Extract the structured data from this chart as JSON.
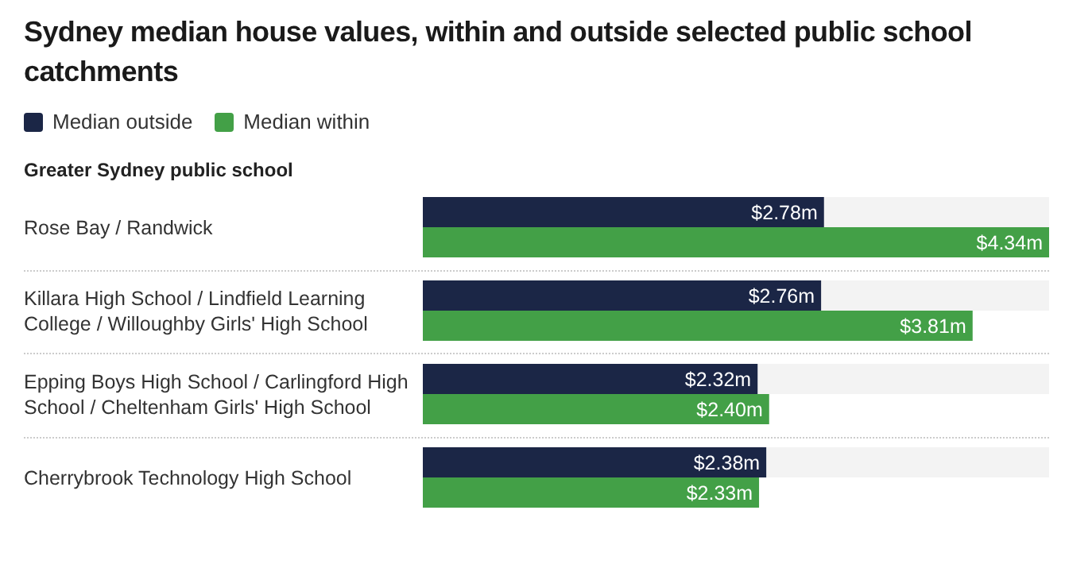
{
  "chart_data": {
    "type": "bar",
    "orientation": "horizontal",
    "title": "Sydney median house values, within and outside selected public school catchments",
    "ylabel": "Greater Sydney public school",
    "legend": "top left",
    "categories": [
      "Rose Bay / Randwick",
      "Killara High School / Lindfield Learning College / Willoughby Girls' High School",
      "Epping Boys High School / Carlingford High School / Cheltenham Girls' High School",
      "Cherrybrook Technology High School"
    ],
    "series": [
      {
        "name": "Median outside",
        "color": "#1b2646",
        "values": [
          2.78,
          2.76,
          2.32,
          2.38
        ],
        "value_labels": [
          "$2.78m",
          "$2.76m",
          "$2.32m",
          "$2.38m"
        ]
      },
      {
        "name": "Median within",
        "color": "#43a047",
        "values": [
          4.34,
          3.81,
          2.4,
          2.33
        ],
        "value_labels": [
          "$4.34m",
          "$3.81m",
          "$2.40m",
          "$2.33m"
        ]
      }
    ]
  }
}
